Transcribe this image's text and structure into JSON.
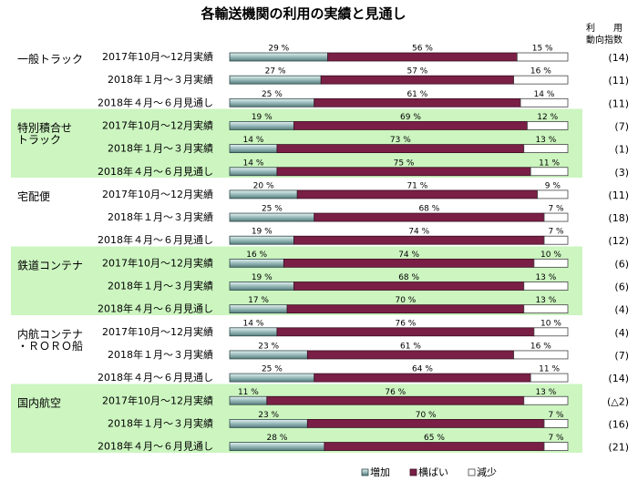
{
  "chart_data": {
    "type": "bar",
    "stacked": "percent",
    "title": "各輸送機関の利用の実績と見通し",
    "index_header": [
      "利　　用",
      "動向指数"
    ],
    "unit": "%",
    "colors": {
      "increase": "#6f9a9a",
      "flat": "#7a1f45",
      "decrease": "#ffffff",
      "highlight": "#ccf5c0"
    },
    "legend": {
      "position": "bottom-right",
      "items": [
        "増加",
        "横ばい",
        "減少"
      ]
    },
    "periods": [
      "2017年10月～12月実績",
      "2018年１月～３月実績",
      "2018年４月～６月見通し"
    ],
    "groups": [
      {
        "name": "一般トラック",
        "highlight": false,
        "rows": [
          {
            "increase": 29,
            "flat": 56,
            "decrease": 15,
            "index": "(14)"
          },
          {
            "increase": 27,
            "flat": 57,
            "decrease": 16,
            "index": "(11)"
          },
          {
            "increase": 25,
            "flat": 61,
            "decrease": 14,
            "index": "(11)"
          }
        ]
      },
      {
        "name": "特別積合せ\nトラック",
        "highlight": true,
        "rows": [
          {
            "increase": 19,
            "flat": 69,
            "decrease": 12,
            "index": "(7)"
          },
          {
            "increase": 14,
            "flat": 73,
            "decrease": 13,
            "index": "(1)"
          },
          {
            "increase": 14,
            "flat": 75,
            "decrease": 11,
            "index": "(3)"
          }
        ]
      },
      {
        "name": "宅配便",
        "highlight": false,
        "rows": [
          {
            "increase": 20,
            "flat": 71,
            "decrease": 9,
            "index": "(11)"
          },
          {
            "increase": 25,
            "flat": 68,
            "decrease": 7,
            "index": "(18)"
          },
          {
            "increase": 19,
            "flat": 74,
            "decrease": 7,
            "index": "(12)"
          }
        ]
      },
      {
        "name": "鉄道コンテナ",
        "highlight": true,
        "rows": [
          {
            "increase": 16,
            "flat": 74,
            "decrease": 10,
            "index": "(6)"
          },
          {
            "increase": 19,
            "flat": 68,
            "decrease": 13,
            "index": "(6)"
          },
          {
            "increase": 17,
            "flat": 70,
            "decrease": 13,
            "index": "(4)"
          }
        ]
      },
      {
        "name": "内航コンテナ\n・ＲＯＲＯ船",
        "highlight": false,
        "rows": [
          {
            "increase": 14,
            "flat": 76,
            "decrease": 10,
            "index": "(4)"
          },
          {
            "increase": 23,
            "flat": 61,
            "decrease": 16,
            "index": "(7)"
          },
          {
            "increase": 25,
            "flat": 64,
            "decrease": 11,
            "index": "(14)"
          }
        ]
      },
      {
        "name": "国内航空",
        "highlight": true,
        "rows": [
          {
            "increase": 11,
            "flat": 76,
            "decrease": 13,
            "index": "(△2)"
          },
          {
            "increase": 23,
            "flat": 70,
            "decrease": 7,
            "index": "(16)"
          },
          {
            "increase": 28,
            "flat": 65,
            "decrease": 7,
            "index": "(21)"
          }
        ]
      }
    ]
  }
}
